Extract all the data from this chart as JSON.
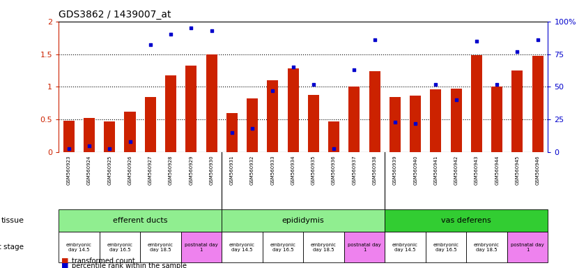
{
  "title": "GDS3862 / 1439007_at",
  "samples": [
    "GSM560923",
    "GSM560924",
    "GSM560925",
    "GSM560926",
    "GSM560927",
    "GSM560928",
    "GSM560929",
    "GSM560930",
    "GSM560931",
    "GSM560932",
    "GSM560933",
    "GSM560934",
    "GSM560935",
    "GSM560936",
    "GSM560937",
    "GSM560938",
    "GSM560939",
    "GSM560940",
    "GSM560941",
    "GSM560942",
    "GSM560943",
    "GSM560944",
    "GSM560945",
    "GSM560946"
  ],
  "red_bars": [
    0.48,
    0.52,
    0.47,
    0.62,
    0.85,
    1.18,
    1.32,
    1.5,
    0.6,
    0.82,
    1.1,
    1.28,
    0.88,
    0.47,
    1.01,
    1.24,
    0.85,
    0.87,
    0.96,
    0.97,
    1.48,
    1.01,
    1.25,
    1.47
  ],
  "blue_pct": [
    3,
    5,
    3,
    8,
    82,
    90,
    95,
    93,
    15,
    18,
    47,
    65,
    52,
    3,
    63,
    86,
    23,
    22,
    52,
    40,
    85,
    52,
    77,
    86
  ],
  "tissue_groups": [
    {
      "label": "efferent ducts",
      "start": 0,
      "end": 7,
      "color": "#90EE90"
    },
    {
      "label": "epididymis",
      "start": 8,
      "end": 15,
      "color": "#90EE90"
    },
    {
      "label": "vas deferens",
      "start": 16,
      "end": 23,
      "color": "#32CD32"
    }
  ],
  "dev_stage_groups": [
    {
      "label": "embryonic\nday 14.5",
      "start": 0,
      "end": 1,
      "color": "#ffffff"
    },
    {
      "label": "embryonic\nday 16.5",
      "start": 2,
      "end": 3,
      "color": "#ffffff"
    },
    {
      "label": "embryonic\nday 18.5",
      "start": 4,
      "end": 5,
      "color": "#ffffff"
    },
    {
      "label": "postnatal day\n1",
      "start": 6,
      "end": 7,
      "color": "#EE82EE"
    },
    {
      "label": "embryonic\nday 14.5",
      "start": 8,
      "end": 9,
      "color": "#ffffff"
    },
    {
      "label": "embryonic\nday 16.5",
      "start": 10,
      "end": 11,
      "color": "#ffffff"
    },
    {
      "label": "embryonic\nday 18.5",
      "start": 12,
      "end": 13,
      "color": "#ffffff"
    },
    {
      "label": "postnatal day\n1",
      "start": 14,
      "end": 15,
      "color": "#EE82EE"
    },
    {
      "label": "embryonic\nday 14.5",
      "start": 16,
      "end": 17,
      "color": "#ffffff"
    },
    {
      "label": "embryonic\nday 16.5",
      "start": 18,
      "end": 19,
      "color": "#ffffff"
    },
    {
      "label": "embryonic\nday 18.5",
      "start": 20,
      "end": 21,
      "color": "#ffffff"
    },
    {
      "label": "postnatal day\n1",
      "start": 22,
      "end": 23,
      "color": "#EE82EE"
    }
  ],
  "ylim": [
    0,
    2
  ],
  "yticks": [
    0,
    0.5,
    1.0,
    1.5,
    2
  ],
  "ytick_labels": [
    "0",
    "0.5",
    "1",
    "1.5",
    "2"
  ],
  "right_yticks": [
    0,
    25,
    50,
    75,
    100
  ],
  "right_ytick_labels": [
    "0",
    "25",
    "50",
    "75",
    "100%"
  ],
  "bar_color": "#CC2200",
  "dot_color": "#0000CC",
  "bg_color": "#ffffff"
}
